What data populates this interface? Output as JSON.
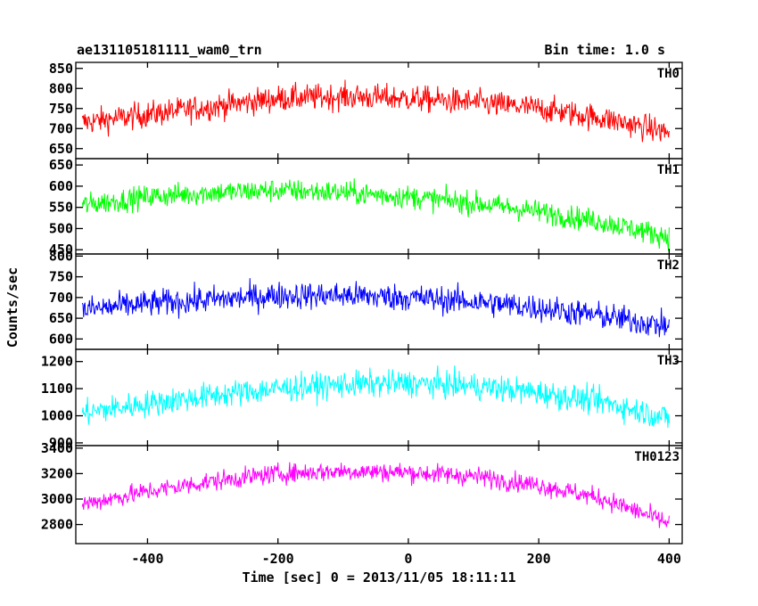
{
  "chart_data": {
    "type": "line",
    "title_left": "ae131105181111_wam0_trn",
    "title_right": "Bin time: 1.0 s",
    "xlabel": "Time [sec] 0 = 2013/11/05 18:11:11",
    "ylabel": "Counts/sec",
    "xlim": [
      -510,
      420
    ],
    "x_ticks": [
      "-400",
      "-200",
      "0",
      "200",
      "400"
    ],
    "x_tick_values": [
      -400,
      -200,
      0,
      200,
      400
    ],
    "x_data_range": [
      -500,
      400
    ],
    "bin_time": 1.0,
    "panels": [
      {
        "name": "TH0",
        "color": "#ff0000",
        "ylim": [
          625,
          865
        ],
        "y_ticks": [
          "650",
          "700",
          "750",
          "800",
          "850"
        ],
        "y_tick_values": [
          650,
          700,
          750,
          800,
          850
        ],
        "trend_x": [
          -500,
          -400,
          -300,
          -200,
          -100,
          0,
          100,
          200,
          300,
          400
        ],
        "trend_y": [
          715,
          735,
          755,
          775,
          780,
          775,
          765,
          750,
          725,
          690
        ],
        "noise_amplitude": 30
      },
      {
        "name": "TH1",
        "color": "#00ff00",
        "ylim": [
          440,
          665
        ],
        "y_ticks": [
          "450",
          "500",
          "550",
          "600",
          "650"
        ],
        "y_tick_values": [
          450,
          500,
          550,
          600,
          650
        ],
        "trend_x": [
          -500,
          -400,
          -300,
          -200,
          -100,
          0,
          100,
          200,
          300,
          400
        ],
        "trend_y": [
          555,
          575,
          585,
          590,
          585,
          575,
          560,
          540,
          515,
          480
        ],
        "noise_amplitude": 25
      },
      {
        "name": "TH2",
        "color": "#0000ff",
        "ylim": [
          575,
          805
        ],
        "y_ticks": [
          "600",
          "650",
          "700",
          "750",
          "800"
        ],
        "y_tick_values": [
          600,
          650,
          700,
          750,
          800
        ],
        "trend_x": [
          -500,
          -400,
          -300,
          -200,
          -100,
          0,
          100,
          200,
          300,
          400
        ],
        "trend_y": [
          670,
          685,
          695,
          705,
          705,
          700,
          690,
          675,
          655,
          630
        ],
        "noise_amplitude": 30
      },
      {
        "name": "TH3",
        "color": "#00ffff",
        "ylim": [
          890,
          1245
        ],
        "y_ticks": [
          "900",
          "1000",
          "1100",
          "1200"
        ],
        "y_tick_values": [
          900,
          1000,
          1100,
          1200
        ],
        "trend_x": [
          -500,
          -400,
          -300,
          -200,
          -100,
          0,
          100,
          200,
          300,
          400
        ],
        "trend_y": [
          1010,
          1045,
          1075,
          1100,
          1115,
          1120,
          1110,
          1085,
          1050,
          990
        ],
        "noise_amplitude": 45
      },
      {
        "name": "TH0123",
        "color": "#ff00ff",
        "ylim": [
          2650,
          3420
        ],
        "y_ticks": [
          "2800",
          "3000",
          "3200",
          "3400"
        ],
        "y_tick_values": [
          2800,
          3000,
          3200,
          3400
        ],
        "trend_x": [
          -500,
          -400,
          -300,
          -200,
          -100,
          0,
          100,
          200,
          300,
          400
        ],
        "trend_y": [
          2960,
          3060,
          3140,
          3200,
          3220,
          3210,
          3180,
          3110,
          3000,
          2810
        ],
        "noise_amplitude": 70
      }
    ]
  }
}
